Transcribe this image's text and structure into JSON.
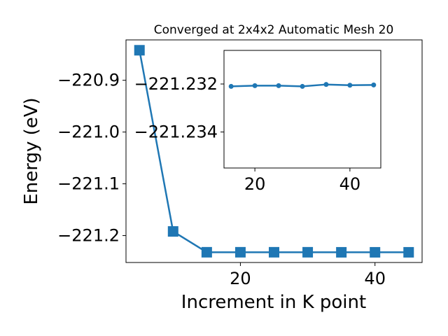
{
  "chart_data": [
    {
      "type": "line",
      "title": "Converged at 2x4x2 Automatic Mesh 20",
      "xlabel": "Increment in K point",
      "ylabel": "Energy (eV)",
      "x": [
        5,
        10,
        15,
        20,
        25,
        30,
        35,
        40,
        45
      ],
      "series": [
        {
          "values": [
            -220.842,
            -221.192,
            -221.2322,
            -221.2322,
            -221.2322,
            -221.2322,
            -221.2323,
            -221.2323,
            -221.2323
          ]
        }
      ],
      "xlim": [
        3.0,
        47.0
      ],
      "ylim": [
        -221.252,
        -220.822
      ],
      "xticks": [
        20,
        40
      ],
      "xtick_labels": [
        "20",
        "40"
      ],
      "yticks": [
        -221.2,
        -221.1,
        -221.0,
        -220.9
      ],
      "ytick_labels": [
        "−221.2",
        "−221.1",
        "−221.0",
        "−220.9"
      ],
      "marker": "square",
      "color": "#1f77b4",
      "grid": false
    },
    {
      "type": "line",
      "role": "inset",
      "x": [
        15,
        20,
        25,
        30,
        35,
        40,
        45
      ],
      "series": [
        {
          "values": [
            -221.2321,
            -221.23207,
            -221.23207,
            -221.2321,
            -221.23202,
            -221.23205,
            -221.23204
          ]
        }
      ],
      "xlim": [
        13.5,
        46.5
      ],
      "ylim": [
        -221.2355,
        -221.2306
      ],
      "xticks": [
        20,
        40
      ],
      "xtick_labels": [
        "20",
        "40"
      ],
      "yticks": [
        -221.234,
        -221.232
      ],
      "ytick_labels": [
        "−221.234",
        "−221.232"
      ],
      "marker": "circle",
      "color": "#1f77b4",
      "grid": false
    }
  ]
}
